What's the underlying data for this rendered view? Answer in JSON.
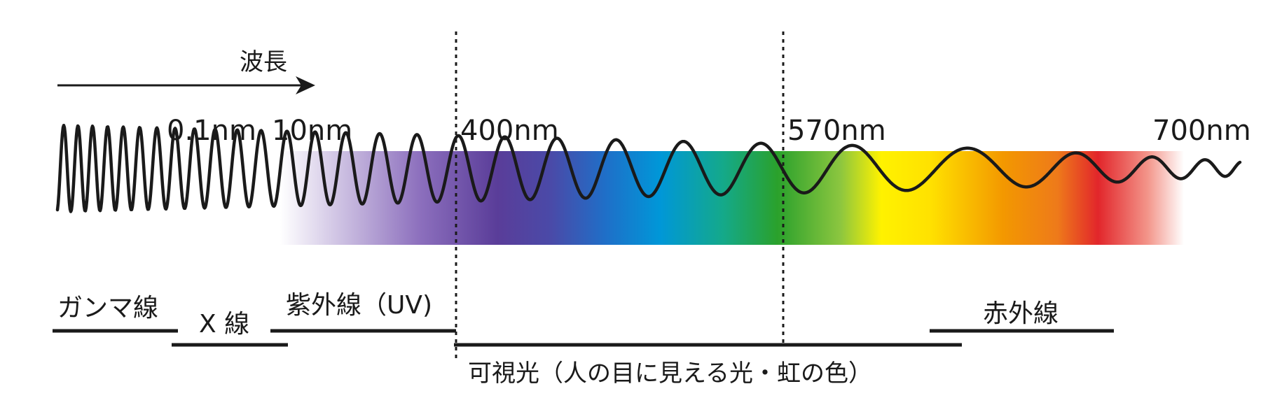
{
  "diagram": {
    "wavelength_axis_label": "波長",
    "wavelength_markers": [
      "0.1nm",
      "10nm",
      "400nm",
      "570nm",
      "700nm"
    ],
    "bands": {
      "gamma": "ガンマ線",
      "xray": "X 線",
      "uv": "紫外線（UV)",
      "infrared": "赤外線",
      "visible": "可視光（人の目に見える光・虹の色）"
    },
    "colors": {
      "line": "#1a1a1a",
      "uv_purple": "#5a3d99",
      "blue": "#0097d8",
      "green": "#2aa12c",
      "yellow": "#fff200",
      "orange": "#f39800",
      "red": "#e2262b"
    }
  }
}
